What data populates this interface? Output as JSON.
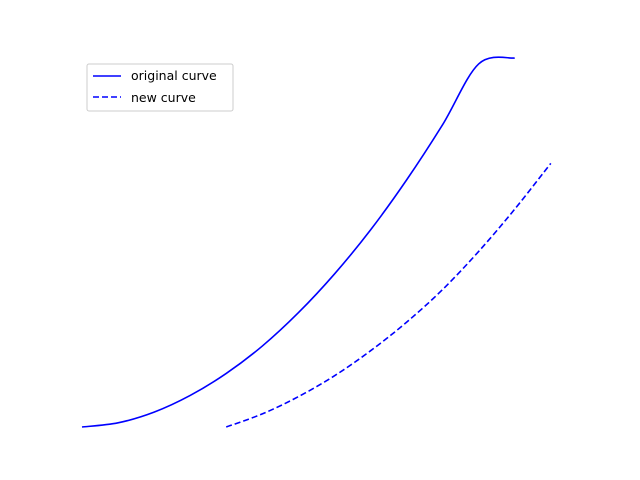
{
  "chart_data": {
    "type": "line",
    "title": "",
    "xlabel": "",
    "ylabel": "",
    "axes_visible": false,
    "grid": false,
    "legend": "upper-left",
    "xlim": [
      0,
      3.3
    ],
    "ylim": [
      0,
      3.1
    ],
    "series": [
      {
        "name": "original curve",
        "style": "solid",
        "color": "#0000ff",
        "x": [
          0,
          0.25,
          0.5,
          0.75,
          1.0,
          1.25,
          1.5,
          1.75,
          2.0,
          2.25,
          2.5,
          2.75,
          3.0
        ],
        "y": [
          0,
          0.035,
          0.125,
          0.265,
          0.45,
          0.68,
          0.96,
          1.285,
          1.655,
          2.075,
          2.54,
          3.05,
          3.1
        ]
      },
      {
        "name": "new curve",
        "style": "dashed",
        "color": "#0000ff",
        "x": [
          1.0,
          1.25,
          1.5,
          1.75,
          2.0,
          2.25,
          2.5,
          2.75,
          3.0,
          3.25
        ],
        "y": [
          0,
          0.11,
          0.255,
          0.43,
          0.64,
          0.88,
          1.155,
          1.475,
          1.83,
          2.215
        ]
      }
    ]
  }
}
